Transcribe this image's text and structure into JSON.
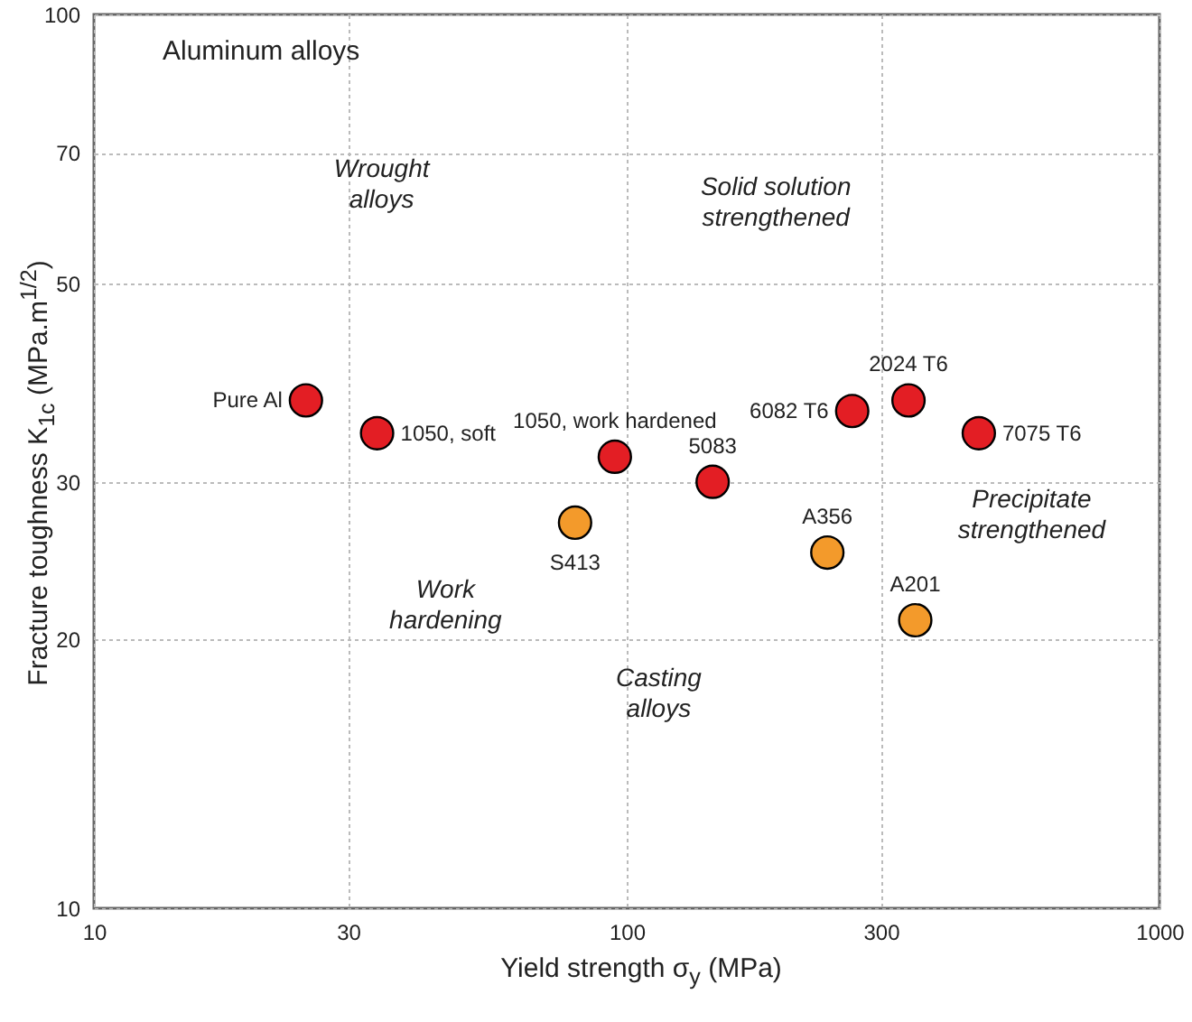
{
  "chart_data": {
    "type": "scatter",
    "title": "Aluminum alloys",
    "xlabel": "Yield strength σ$_{y}$ (MPa)",
    "ylabel": "Fracture toughness K$_{1c}$ (MPa.m$^{1/2}$)",
    "log": "xy",
    "xlim": [
      10,
      1000
    ],
    "xticks": [
      10,
      30,
      100,
      300,
      {
        "value": 1000,
        "label": "1000"
      }
    ],
    "ylim": [
      10,
      100
    ],
    "yticks": [
      10,
      20,
      30,
      50,
      70,
      100
    ],
    "grid": true,
    "marker": "circle",
    "series": [
      {
        "name": "Pure Al",
        "color": "#e31e24",
        "x": [
          25
        ],
        "values": [
          37
        ]
      },
      {
        "name": "1050, soft",
        "color": "#e31e24",
        "x": [
          34
        ],
        "values": [
          34
        ]
      },
      {
        "name": "1050, work hardened",
        "color": "#e31e24",
        "x": [
          95
        ],
        "values": [
          32
        ]
      },
      {
        "name": "5083",
        "color": "#e31e24",
        "x": [
          145
        ],
        "values": [
          30
        ]
      },
      {
        "name": "6082 T6",
        "color": "#e31e24",
        "x": [
          265
        ],
        "values": [
          36
        ]
      },
      {
        "name": "2024 T6",
        "color": "#e31e24",
        "x": [
          338
        ],
        "values": [
          37
        ]
      },
      {
        "name": "7075 T6",
        "color": "#e31e24",
        "x": [
          458
        ],
        "values": [
          34
        ]
      },
      {
        "name": "S413",
        "color": "#f39a2b",
        "x": [
          80
        ],
        "values": [
          27
        ]
      },
      {
        "name": "A356",
        "color": "#f39a2b",
        "x": [
          238
        ],
        "values": [
          25
        ]
      },
      {
        "name": "A201",
        "color": "#f39a2b",
        "x": [
          348
        ],
        "values": [
          21
        ]
      }
    ],
    "annotations": [
      "Wrought alloys",
      "Solid solution strengthened",
      "Work hardening",
      "Precipitate strengthened",
      "Casting alloys"
    ]
  }
}
